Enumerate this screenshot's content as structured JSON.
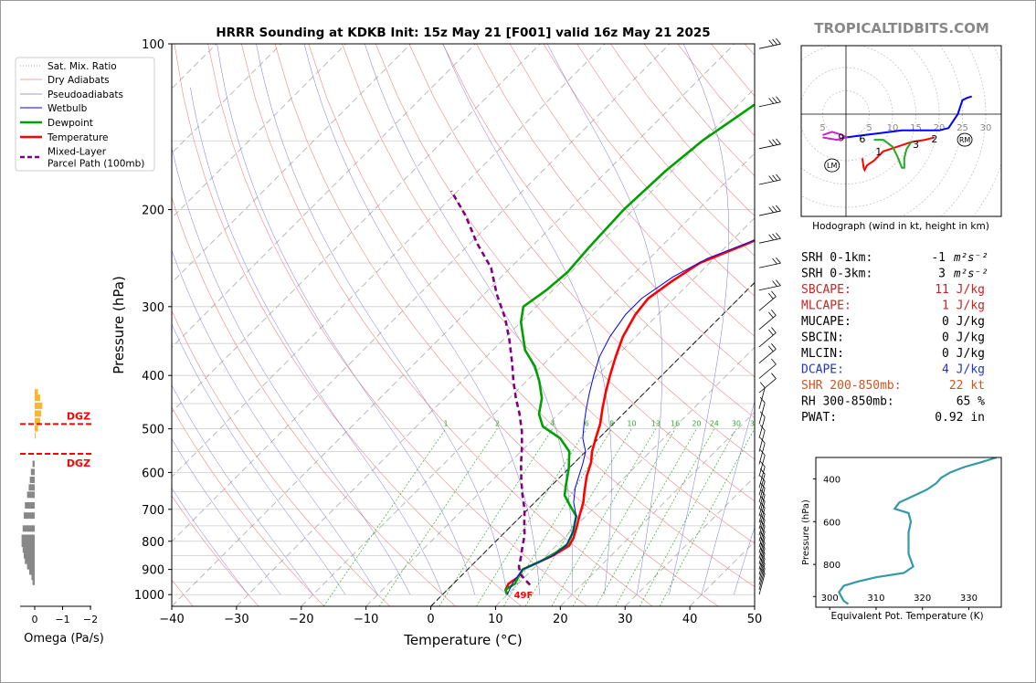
{
  "title": "HRRR Sounding at KDKB Init: 15z May 21 [F001] valid 16z May 21 2025",
  "watermark": "TROPICALTIDBITS.COM",
  "chart_data": [
    {
      "type": "line",
      "title": "HRRR Sounding at KDKB Init: 15z May 21 [F001] valid 16z May 21 2025",
      "xlabel": "Temperature (°C)",
      "ylabel": "Pressure (hPa)",
      "xlim": [
        -40,
        50
      ],
      "ylim": [
        1050,
        100
      ],
      "y_scale": "log (skew-T)",
      "xticks": [
        "−40",
        "−30",
        "−20",
        "−10",
        "0",
        "10",
        "20",
        "30",
        "40",
        "50"
      ],
      "yticks": [
        "100",
        "200",
        "300",
        "400",
        "500",
        "600",
        "700",
        "800",
        "900",
        "1000"
      ],
      "legend": {
        "placement": "left panel top",
        "entries": [
          "Sat. Mix. Ratio",
          "Dry Adiabats",
          "Pseudoadiabats",
          "Wetbulb",
          "Dewpoint",
          "Temperature",
          "Mixed-Layer\nParcel Path (100mb)"
        ]
      },
      "mixing_ratio_labels": [
        "1",
        "2",
        "4",
        "6",
        "8",
        "10",
        "13",
        "16",
        "20",
        "24",
        "30",
        "36"
      ],
      "surface_label": "49F",
      "series": [
        {
          "name": "Temperature",
          "color": "#ff0000",
          "points": [
            [
              10,
              1000
            ],
            [
              9,
              980
            ],
            [
              8.5,
              955
            ],
            [
              9,
              930
            ],
            [
              8.5,
              900
            ],
            [
              9.5,
              880
            ],
            [
              11,
              850
            ],
            [
              12,
              815
            ],
            [
              11.5,
              790
            ],
            [
              10.5,
              760
            ],
            [
              9,
              720
            ],
            [
              7.5,
              680
            ],
            [
              6,
              650
            ],
            [
              4,
              610
            ],
            [
              2.5,
              575
            ],
            [
              1,
              550
            ],
            [
              -0.5,
              520
            ],
            [
              -2,
              490
            ],
            [
              -4,
              460
            ],
            [
              -6,
              430
            ],
            [
              -8,
              400
            ],
            [
              -10,
              370
            ],
            [
              -12,
              340
            ],
            [
              -13.5,
              310
            ],
            [
              -14,
              290
            ],
            [
              -13,
              270
            ],
            [
              -11.5,
              250
            ],
            [
              -7,
              230
            ],
            [
              -3,
              210
            ],
            [
              -1,
              200
            ],
            [
              0,
              185
            ],
            [
              1,
              165
            ],
            [
              2,
              140
            ],
            [
              3,
              120
            ],
            [
              5,
              100
            ]
          ]
        },
        {
          "name": "Dewpoint",
          "color": "#00a000",
          "points": [
            [
              10,
              1000
            ],
            [
              9,
              980
            ],
            [
              9.5,
              955
            ],
            [
              9,
              930
            ],
            [
              8.5,
              900
            ],
            [
              10,
              870
            ],
            [
              11,
              840
            ],
            [
              11.5,
              810
            ],
            [
              10.5,
              770
            ],
            [
              8.5,
              720
            ],
            [
              6,
              690
            ],
            [
              3.5,
              660
            ],
            [
              2,
              630
            ],
            [
              0,
              590
            ],
            [
              -2.5,
              550
            ],
            [
              -6,
              520
            ],
            [
              -10.5,
              495
            ],
            [
              -13,
              470
            ],
            [
              -15,
              440
            ],
            [
              -18,
              410
            ],
            [
              -21,
              385
            ],
            [
              -25,
              360
            ],
            [
              -30,
              320
            ],
            [
              -32,
              300
            ],
            [
              -31,
              280
            ],
            [
              -30.5,
              260
            ],
            [
              -31,
              235
            ],
            [
              -31.5,
              200
            ],
            [
              -31,
              170
            ],
            [
              -30,
              150
            ],
            [
              -27,
              125
            ],
            [
              -23,
              100
            ]
          ]
        },
        {
          "name": "Wetbulb",
          "color": "#0000ff",
          "points": [
            [
              10,
              1000
            ],
            [
              9,
              950
            ],
            [
              8.5,
              900
            ],
            [
              9.5,
              880
            ],
            [
              11,
              850
            ],
            [
              11.5,
              815
            ],
            [
              10.5,
              770
            ],
            [
              8.5,
              720
            ],
            [
              6,
              680
            ],
            [
              4,
              640
            ],
            [
              1.5,
              580
            ],
            [
              0,
              550
            ],
            [
              -2.5,
              520
            ],
            [
              -4.5,
              490
            ],
            [
              -6.5,
              460
            ],
            [
              -8.5,
              430
            ],
            [
              -10.5,
              400
            ],
            [
              -12.5,
              370
            ],
            [
              -14,
              340
            ],
            [
              -15,
              310
            ],
            [
              -15,
              290
            ],
            [
              -13.5,
              265
            ],
            [
              -11,
              245
            ],
            [
              -6,
              225
            ],
            [
              -3,
              200
            ],
            [
              -1,
              180
            ],
            [
              0,
              160
            ],
            [
              1,
              140
            ],
            [
              2,
              120
            ],
            [
              4,
              100
            ]
          ]
        },
        {
          "name": "Mixed-Layer\nParcel Path (100mb)",
          "color": "#800080",
          "points": [
            [
              12,
              960
            ],
            [
              10.5,
              940
            ],
            [
              9,
              920
            ],
            [
              7.5,
              890
            ],
            [
              6.5,
              860
            ],
            [
              5,
              820
            ],
            [
              3.5,
              780
            ],
            [
              1.5,
              740
            ],
            [
              -0.5,
              700
            ],
            [
              -3,
              660
            ],
            [
              -5.5,
              620
            ],
            [
              -8,
              580
            ],
            [
              -10.5,
              540
            ],
            [
              -13,
              505
            ],
            [
              -16,
              470
            ],
            [
              -19,
              440
            ],
            [
              -22,
              410
            ],
            [
              -25,
              380
            ],
            [
              -29,
              345
            ],
            [
              -33,
              315
            ],
            [
              -38,
              285
            ],
            [
              -43,
              255
            ],
            [
              -49,
              230
            ],
            [
              -55,
              205
            ],
            [
              -61,
              185
            ]
          ]
        }
      ]
    },
    {
      "type": "bar",
      "xlabel": "Omega (Pa/s)",
      "xticks": [
        "0",
        "−1",
        "−2"
      ],
      "dgz_label": "DGZ",
      "dgz_levels": [
        490,
        555
      ]
    },
    {
      "type": "line",
      "title": "Hodograph (wind in kt, height in km)",
      "ring_labels": [
        "5",
        "5",
        "10",
        "15",
        "20",
        "25",
        "30"
      ],
      "height_labels": [
        "9",
        "6",
        "1",
        "3",
        "2"
      ],
      "markers": [
        "LM",
        "RM"
      ]
    },
    {
      "type": "line",
      "xlabel": "Equivalent Pot. Temperature (K)",
      "ylabel": "Pressure (hPa)",
      "xticks": [
        "300",
        "310",
        "320",
        "330"
      ],
      "yticks": [
        "400",
        "600",
        "800"
      ],
      "xlim": [
        297,
        337
      ],
      "ylim": [
        1000,
        300
      ],
      "series": [
        {
          "color": "#3399aa",
          "points": [
            [
              336,
              300
            ],
            [
              333,
              320
            ],
            [
              329,
              345
            ],
            [
              326,
              370
            ],
            [
              324,
              395
            ],
            [
              323,
              420
            ],
            [
              321,
              450
            ],
            [
              318,
              480
            ],
            [
              315,
              510
            ],
            [
              314,
              540
            ],
            [
              317,
              560
            ],
            [
              317.5,
              600
            ],
            [
              317,
              650
            ],
            [
              317,
              700
            ],
            [
              317,
              750
            ],
            [
              317.5,
              780
            ],
            [
              318,
              810
            ],
            [
              316,
              840
            ],
            [
              310,
              860
            ],
            [
              306,
              880
            ],
            [
              303,
              900
            ],
            [
              302,
              930
            ],
            [
              302.5,
              950
            ],
            [
              303,
              970
            ],
            [
              304,
              985
            ]
          ]
        }
      ]
    }
  ],
  "stats": [
    {
      "label": "SRH 0-1km:",
      "value": "-1",
      "unit": "m²s⁻²",
      "color": "#000000"
    },
    {
      "label": "SRH 0-3km:",
      "value": "3",
      "unit": "m²s⁻²",
      "color": "#000000"
    },
    {
      "label": "SBCAPE:",
      "value": "11 J/kg",
      "unit": "",
      "color": "#cc2222"
    },
    {
      "label": "MLCAPE:",
      "value": "1 J/kg",
      "unit": "",
      "color": "#cc2222"
    },
    {
      "label": "MUCAPE:",
      "value": "0 J/kg",
      "unit": "",
      "color": "#000000"
    },
    {
      "label": "SBCIN:",
      "value": "0 J/kg",
      "unit": "",
      "color": "#000000"
    },
    {
      "label": "MLCIN:",
      "value": "0 J/kg",
      "unit": "",
      "color": "#000000"
    },
    {
      "label": "DCAPE:",
      "value": "4 J/kg",
      "unit": "",
      "color": "#2233cc"
    },
    {
      "label": "SHR 200-850mb:",
      "value": "22 kt",
      "unit": "",
      "color": "#cc5522"
    },
    {
      "label": "RH 300-850mb:",
      "value": "65 %",
      "unit": "",
      "color": "#000000"
    },
    {
      "label": "PWAT:",
      "value": "0.92 in",
      "unit": "",
      "color": "#000000"
    }
  ]
}
